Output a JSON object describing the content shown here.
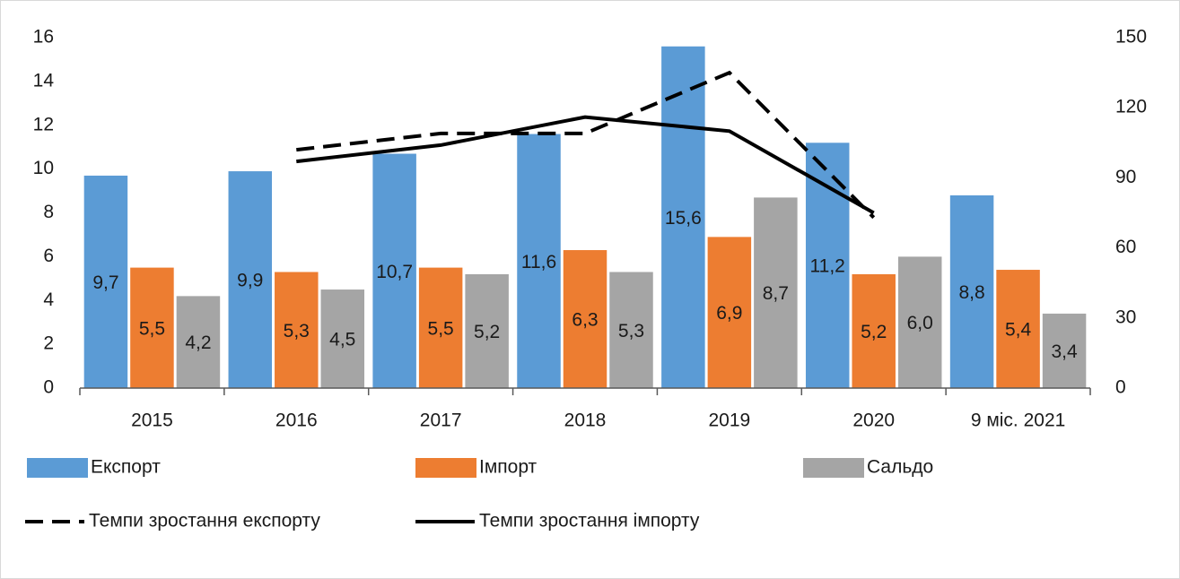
{
  "chart_data": {
    "type": "bar",
    "categories": [
      "2015",
      "2016",
      "2017",
      "2018",
      "2019",
      "2020",
      "9 міс. 2021"
    ],
    "series": [
      {
        "name": "Експорт",
        "color": "#5b9bd5",
        "values": [
          9.7,
          9.9,
          10.7,
          11.6,
          15.6,
          11.2,
          8.8
        ],
        "value_labels": [
          "9,7",
          "9,9",
          "10,7",
          "11,6",
          "15,6",
          "11,2",
          "8,8"
        ]
      },
      {
        "name": "Імпорт",
        "color": "#ed7d31",
        "values": [
          5.5,
          5.3,
          5.5,
          6.3,
          6.9,
          5.2,
          5.4
        ],
        "value_labels": [
          "5,5",
          "5,3",
          "5,5",
          "6,3",
          "6,9",
          "5,2",
          "5,4"
        ]
      },
      {
        "name": "Сальдо",
        "color": "#a5a5a5",
        "values": [
          4.2,
          4.5,
          5.2,
          5.3,
          8.7,
          6.0,
          3.4
        ],
        "value_labels": [
          "4,2",
          "4,5",
          "5,2",
          "5,3",
          "8,7",
          "6,0",
          "3,4"
        ]
      },
      {
        "name": "Темпи зростання експорту",
        "type": "line",
        "dashed": true,
        "color": "#000000",
        "axis": "y2",
        "values": [
          null,
          102,
          109,
          109,
          135,
          73,
          null
        ]
      },
      {
        "name": "Темпи зростання імпорту",
        "type": "line",
        "dashed": false,
        "color": "#000000",
        "axis": "y2",
        "values": [
          null,
          97,
          104,
          116,
          110,
          75,
          null
        ]
      }
    ],
    "ylim": [
      0,
      16
    ],
    "yticks": [
      0,
      2,
      4,
      6,
      8,
      10,
      12,
      14,
      16
    ],
    "y2lim": [
      0,
      150
    ],
    "y2ticks": [
      0,
      30,
      60,
      90,
      120,
      150
    ],
    "grid": false
  }
}
